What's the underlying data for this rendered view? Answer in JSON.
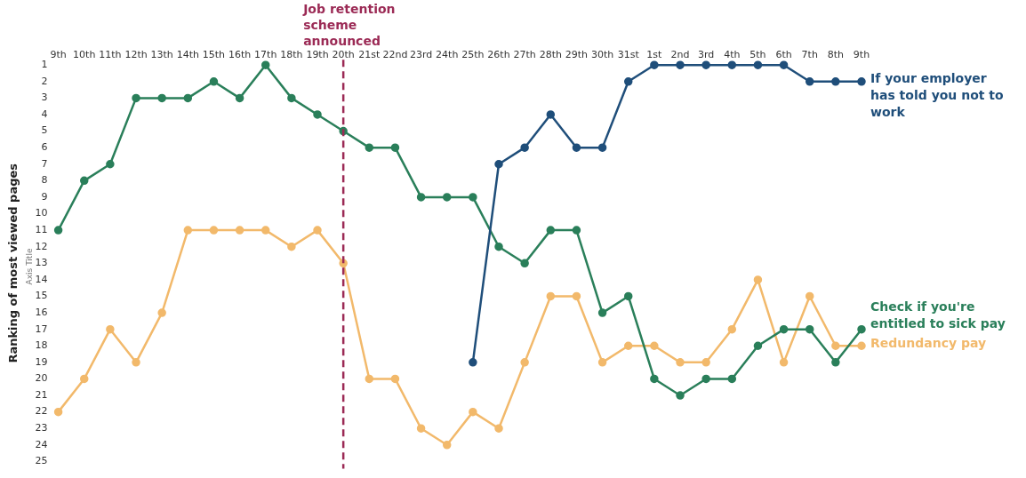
{
  "chart_data": {
    "type": "line",
    "ylabel": "Ranking of most viewed pages",
    "categories": [
      "9th",
      "10th",
      "11th",
      "12th",
      "13th",
      "14th",
      "15th",
      "16th",
      "17th",
      "18th",
      "19th",
      "20th",
      "21st",
      "22nd",
      "23rd",
      "24th",
      "25th",
      "26th",
      "27th",
      "28th",
      "29th",
      "30th",
      "31st",
      "1st",
      "2nd",
      "3rd",
      "4th",
      "5th",
      "6th",
      "7th",
      "8th",
      "9th"
    ],
    "series": [
      {
        "name": "If your employer has told you not to work",
        "color": "#1f4e7a",
        "values": [
          null,
          null,
          null,
          null,
          null,
          null,
          null,
          null,
          null,
          null,
          null,
          null,
          null,
          null,
          null,
          null,
          19,
          7,
          6,
          4,
          6,
          6,
          2,
          1,
          1,
          1,
          1,
          1,
          1,
          2,
          2,
          2
        ]
      },
      {
        "name": "Check if you're entitled to sick pay",
        "color": "#2a7f5a",
        "values": [
          11,
          8,
          7,
          3,
          3,
          3,
          2,
          3,
          1,
          3,
          4,
          5,
          6,
          6,
          9,
          9,
          9,
          12,
          13,
          11,
          11,
          16,
          15,
          20,
          21,
          20,
          20,
          18,
          17,
          17,
          19,
          17
        ]
      },
      {
        "name": "Redundancy pay",
        "color": "#f2b96b",
        "values": [
          22,
          20,
          17,
          19,
          16,
          11,
          11,
          11,
          11,
          12,
          11,
          13,
          20,
          20,
          23,
          24,
          22,
          23,
          19,
          15,
          15,
          19,
          18,
          18,
          19,
          19,
          17,
          14,
          19,
          15,
          18,
          18
        ]
      }
    ],
    "ylim": [
      25,
      1
    ],
    "yticks": [
      1,
      2,
      3,
      4,
      5,
      6,
      7,
      8,
      9,
      10,
      11,
      12,
      13,
      14,
      15,
      16,
      17,
      18,
      19,
      20,
      21,
      22,
      23,
      24,
      25
    ],
    "ref_lines": [
      {
        "axis": "x",
        "value": "20th",
        "label": "Job retention scheme announced",
        "color": "#9b2a55",
        "line_style": "dashed"
      }
    ],
    "annotations": [
      "Axis Title"
    ],
    "marker": "circle",
    "line_style": "solid",
    "legend": false,
    "grid": false
  }
}
